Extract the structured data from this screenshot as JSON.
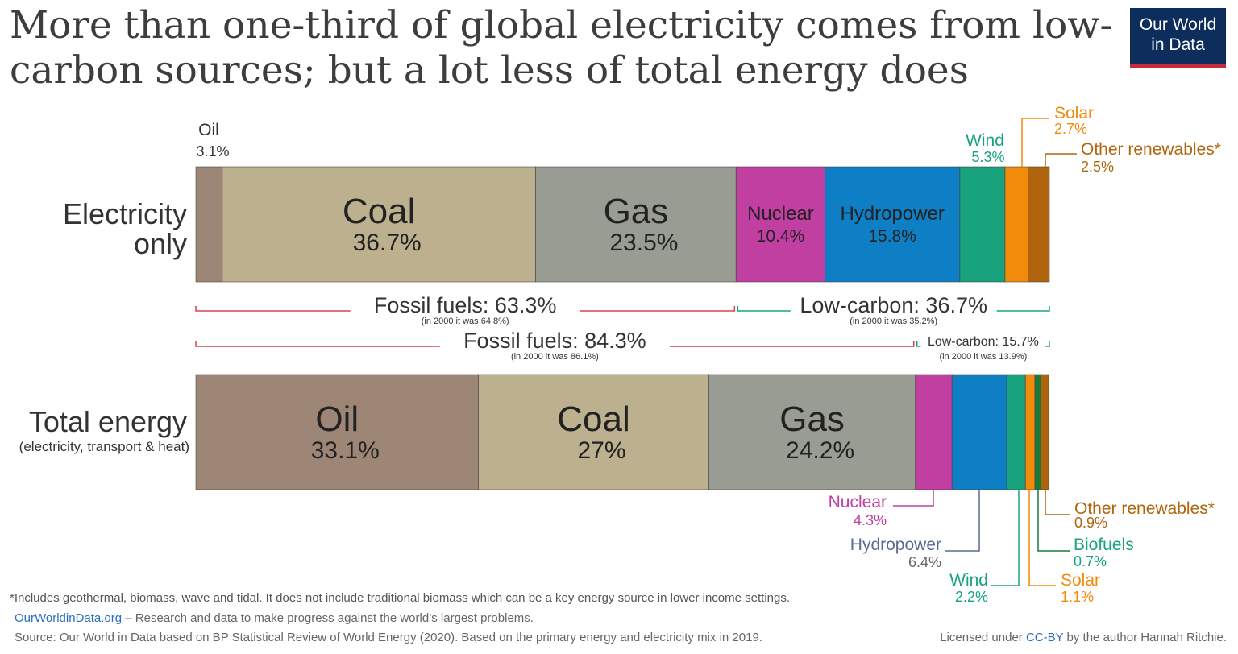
{
  "title": "More than one-third of global electricity comes from low-carbon sources; but a lot less of total energy does",
  "logo": {
    "line1": "Our World",
    "line2": "in Data"
  },
  "colors": {
    "oil": "#9e8676",
    "coal": "#bdb08e",
    "gas": "#999c93",
    "nuclear": "#c23fa2",
    "hydropower": "#0f7fc5",
    "wind": "#18a37e",
    "solar": "#f28a0c",
    "other_renewables": "#b0640c",
    "biofuels": "#1b7a3b",
    "fossil_bracket": "#d9434a",
    "lowcarbon_bracket": "#18a37e"
  },
  "chart_data": {
    "type": "bar",
    "stacked": true,
    "orientation": "horizontal",
    "categories": [
      "Electricity only",
      "Total energy"
    ],
    "category_labels": [
      {
        "line1": "Electricity",
        "line2": "only",
        "sub": ""
      },
      {
        "line1": "Total energy",
        "line2": "",
        "sub": "(electricity, transport & heat)"
      }
    ],
    "rows": [
      {
        "segments": [
          {
            "source": "Oil",
            "value": 3.1,
            "label": "3.1%",
            "color_key": "oil"
          },
          {
            "source": "Coal",
            "value": 36.7,
            "label": "36.7%",
            "color_key": "coal"
          },
          {
            "source": "Gas",
            "value": 23.5,
            "label": "23.5%",
            "color_key": "gas"
          },
          {
            "source": "Nuclear",
            "value": 10.4,
            "label": "10.4%",
            "color_key": "nuclear"
          },
          {
            "source": "Hydropower",
            "value": 15.8,
            "label": "15.8%",
            "color_key": "hydropower"
          },
          {
            "source": "Wind",
            "value": 5.3,
            "label": "5.3%",
            "color_key": "wind"
          },
          {
            "source": "Solar",
            "value": 2.7,
            "label": "2.7%",
            "color_key": "solar"
          },
          {
            "source": "Other renewables*",
            "value": 2.5,
            "label": "2.5%",
            "color_key": "other_renewables"
          }
        ],
        "groups": [
          {
            "text": "Fossil fuels: 63.3%",
            "note": "(in 2000 it was 64.8%)",
            "from": 0,
            "to": 63.3,
            "color_key": "fossil_bracket"
          },
          {
            "text": "Low-carbon: 36.7%",
            "note": "(in 2000 it was 35.2%)",
            "from": 63.3,
            "to": 100,
            "color_key": "lowcarbon_bracket"
          }
        ]
      },
      {
        "segments": [
          {
            "source": "Oil",
            "value": 33.1,
            "label": "33.1%",
            "color_key": "oil"
          },
          {
            "source": "Coal",
            "value": 27,
            "label": "27%",
            "color_key": "coal"
          },
          {
            "source": "Gas",
            "value": 24.2,
            "label": "24.2%",
            "color_key": "gas"
          },
          {
            "source": "Nuclear",
            "value": 4.3,
            "label": "4.3%",
            "color_key": "nuclear"
          },
          {
            "source": "Hydropower",
            "value": 6.4,
            "label": "6.4%",
            "color_key": "hydropower"
          },
          {
            "source": "Wind",
            "value": 2.2,
            "label": "2.2%",
            "color_key": "wind"
          },
          {
            "source": "Solar",
            "value": 1.1,
            "label": "1.1%",
            "color_key": "solar"
          },
          {
            "source": "Biofuels",
            "value": 0.7,
            "label": "0.7%",
            "color_key": "biofuels"
          },
          {
            "source": "Other renewables*",
            "value": 0.9,
            "label": "0.9%",
            "color_key": "other_renewables"
          }
        ],
        "groups": [
          {
            "text": "Fossil fuels: 84.3%",
            "note": "(in 2000 it was 86.1%)",
            "from": 0,
            "to": 84.3,
            "color_key": "fossil_bracket"
          },
          {
            "text": "Low-carbon: 15.7%",
            "note": "(in 2000 it was 13.9%)",
            "from": 84.3,
            "to": 100,
            "color_key": "lowcarbon_bracket"
          }
        ]
      }
    ],
    "xlim": [
      0,
      100
    ],
    "legend": "none",
    "grid": false
  },
  "footer": {
    "footnote": "*Includes geothermal, biomass, wave and tidal. It does not include traditional biomass which can be a key energy source in lower income settings.",
    "site_link": "OurWorldinData.org",
    "site_text": " – Research and data to make progress against the world’s largest problems.",
    "source": "Source: Our World in Data based on BP Statistical Review of World Energy (2020). Based on the primary energy and electricity mix in 2019.",
    "license_prefix": "Licensed under ",
    "license_link": "CC-BY",
    "license_suffix": " by the author Hannah Ritchie."
  }
}
